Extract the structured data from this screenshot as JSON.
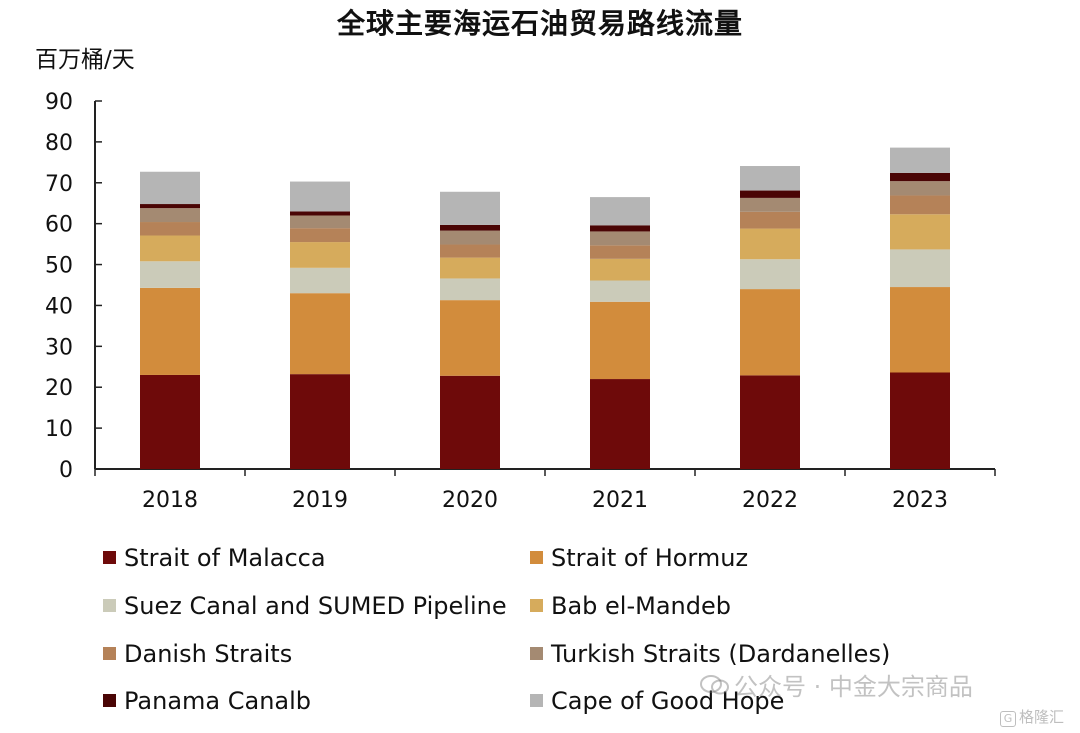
{
  "chart_data": {
    "type": "bar",
    "stacked": true,
    "title": "全球主要海运石油贸易路线流量",
    "ylabel": "百万桶/天",
    "xlabel": "",
    "ylim": [
      0,
      90
    ],
    "yticks": [
      0,
      10,
      20,
      30,
      40,
      50,
      60,
      70,
      80,
      90
    ],
    "categories": [
      "2018",
      "2019",
      "2020",
      "2021",
      "2022",
      "2023"
    ],
    "series": [
      {
        "name": "Strait of Malacca",
        "color": "#6e0a0a",
        "values": [
          23.0,
          23.2,
          22.8,
          22.0,
          22.9,
          23.6
        ]
      },
      {
        "name": "Strait of Hormuz",
        "color": "#d28c3c",
        "values": [
          21.3,
          19.8,
          18.5,
          18.9,
          21.1,
          20.9
        ]
      },
      {
        "name": "Suez Canal and SUMED Pipeline",
        "color": "#cbcbb9",
        "values": [
          6.5,
          6.2,
          5.3,
          5.2,
          7.3,
          9.2
        ]
      },
      {
        "name": "Bab el-Mandeb",
        "color": "#d6ab5c",
        "values": [
          6.3,
          6.3,
          5.1,
          5.3,
          7.5,
          8.6
        ]
      },
      {
        "name": "Danish Straits",
        "color": "#b58258",
        "values": [
          3.3,
          3.4,
          3.2,
          3.3,
          4.1,
          4.6
        ]
      },
      {
        "name": "Turkish Straits (Dardanelles)",
        "color": "#a48a72",
        "values": [
          3.4,
          3.1,
          3.4,
          3.4,
          3.4,
          3.5
        ]
      },
      {
        "name": "Panama Canalb",
        "color": "#4a0505",
        "values": [
          1.0,
          1.0,
          1.4,
          1.5,
          1.8,
          2.0
        ]
      },
      {
        "name": "Cape of Good Hope",
        "color": "#b5b5b5",
        "values": [
          7.9,
          7.3,
          8.1,
          6.9,
          6.0,
          6.2
        ]
      }
    ],
    "legend_position": "bottom",
    "grid": false
  },
  "watermark": {
    "text": "公众号 · 中金大宗商品",
    "badge": "格隆汇"
  }
}
